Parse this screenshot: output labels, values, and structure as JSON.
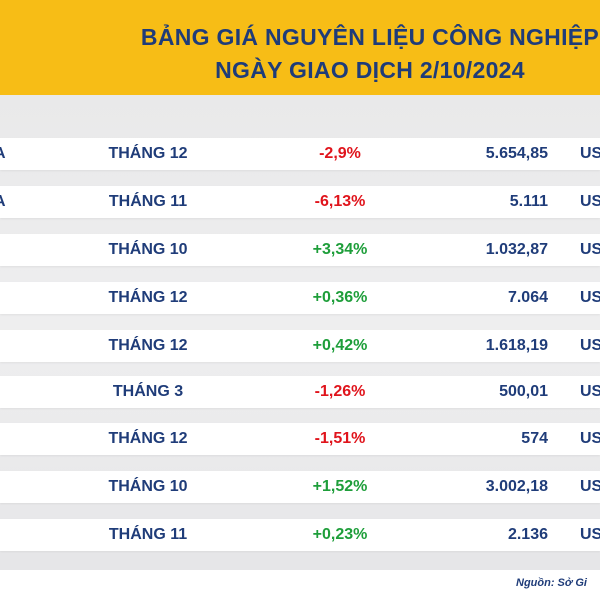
{
  "title": {
    "line1": "BẢNG GIÁ NGUYÊN LIỆU CÔNG NGHIỆP",
    "line2": "NGÀY GIAO DỊCH 2/10/2024"
  },
  "colors": {
    "header_bg": "#f7bd16",
    "title_text": "#1f3c79",
    "negative": "#e0141c",
    "positive": "#1e9e3a"
  },
  "rows": [
    {
      "name": "A",
      "month": "THÁNG 12",
      "change": "-2,9%",
      "direction": "neg",
      "price": "5.654,85",
      "unit": "US"
    },
    {
      "name": "A",
      "month": "THÁNG 11",
      "change": "-6,13%",
      "direction": "neg",
      "price": "5.111",
      "unit": "US"
    },
    {
      "name": "",
      "month": "THÁNG 10",
      "change": "+3,34%",
      "direction": "pos",
      "price": "1.032,87",
      "unit": "US"
    },
    {
      "name": "",
      "month": "THÁNG 12",
      "change": "+0,36%",
      "direction": "pos",
      "price": "7.064",
      "unit": "US"
    },
    {
      "name": "",
      "month": "THÁNG 12",
      "change": "+0,42%",
      "direction": "pos",
      "price": "1.618,19",
      "unit": "US"
    },
    {
      "name": "",
      "month": "THÁNG 3",
      "change": "-1,26%",
      "direction": "neg",
      "price": "500,01",
      "unit": "US"
    },
    {
      "name": "",
      "month": "THÁNG 12",
      "change": "-1,51%",
      "direction": "neg",
      "price": "574",
      "unit": "US"
    },
    {
      "name": "",
      "month": "THÁNG 10",
      "change": "+1,52%",
      "direction": "pos",
      "price": "3.002,18",
      "unit": "US"
    },
    {
      "name": "",
      "month": "THÁNG 11",
      "change": "+0,23%",
      "direction": "pos",
      "price": "2.136",
      "unit": "US"
    }
  ],
  "footer": {
    "source": "Nguồn: Sở Gi"
  }
}
